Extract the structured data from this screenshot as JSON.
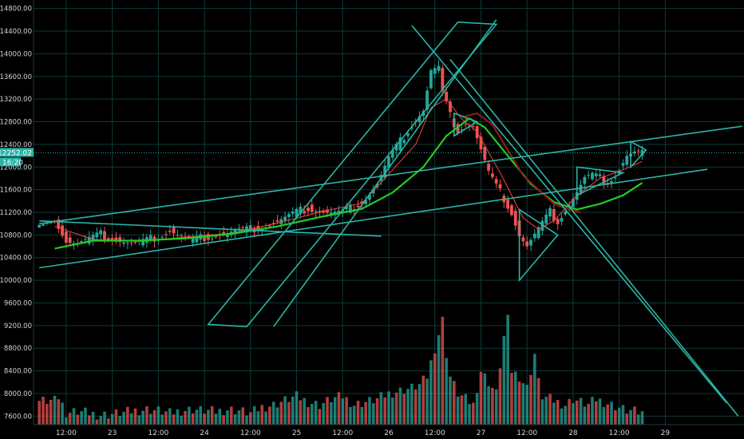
{
  "chart_data": {
    "type": "candlestick",
    "series_note": "",
    "y_axis": {
      "ticks": [
        7600,
        8000,
        8400,
        8800,
        9200,
        9600,
        10000,
        10400,
        10800,
        11200,
        11600,
        12000,
        12400,
        12800,
        13200,
        13600,
        14000,
        14400,
        14800
      ],
      "tick_labels": [
        "7600.00",
        "8000.00",
        "8400.00",
        "8800.00",
        "9200.00",
        "9600.00",
        "10000.00",
        "10400.00",
        "10800.00",
        "11200.00",
        "11600.00",
        "12000.00",
        "12400.00",
        "12800.00",
        "13200.00",
        "13600.00",
        "14000.00",
        "14400.00",
        "14800.00"
      ],
      "range": [
        7450,
        14950
      ]
    },
    "x_axis": {
      "start": "Jun 22 09:00",
      "tick_labels": [
        "12:00",
        "23",
        "12:00",
        "24",
        "12:00",
        "25",
        "12:00",
        "26",
        "12:00",
        "27",
        "12:00",
        "28",
        "12:00",
        "29"
      ],
      "tick_hours": [
        3,
        15,
        27,
        39,
        51,
        63,
        75,
        87,
        99,
        111,
        123,
        135,
        147,
        159
      ],
      "range_hours": [
        -5.5,
        179.5
      ]
    },
    "current_price": {
      "value": 12252.02,
      "label": "12252.02",
      "countdown": "16:20"
    },
    "grid": true,
    "colors": {
      "background": "#000000",
      "grid": "#0f3a3a",
      "up": "#26a69a",
      "down": "#ef5350",
      "ma_fast": "#ff4444",
      "ma_green": "#22cc22",
      "ma_dark": "#8b1a1a",
      "drawing": "#2ab5a6",
      "axis_text": "#d1d4dc"
    },
    "candle_anchors": [
      [
        0,
        11100
      ],
      [
        3,
        10700
      ],
      [
        6,
        10650
      ],
      [
        9,
        10730
      ],
      [
        12,
        10810
      ],
      [
        15,
        10740
      ],
      [
        18,
        10680
      ],
      [
        21,
        10640
      ],
      [
        24,
        10700
      ],
      [
        27,
        10780
      ],
      [
        30,
        10880
      ],
      [
        33,
        10760
      ],
      [
        36,
        10700
      ],
      [
        39,
        10760
      ],
      [
        42,
        10800
      ],
      [
        45,
        10830
      ],
      [
        48,
        10880
      ],
      [
        51,
        10900
      ],
      [
        54,
        10950
      ],
      [
        57,
        11000
      ],
      [
        60,
        11100
      ],
      [
        63,
        11200
      ],
      [
        66,
        11280
      ],
      [
        69,
        11220
      ],
      [
        72,
        11180
      ],
      [
        75,
        11200
      ],
      [
        78,
        11300
      ],
      [
        81,
        11450
      ],
      [
        84,
        11700
      ],
      [
        87,
        12150
      ],
      [
        90,
        12450
      ],
      [
        93,
        12750
      ],
      [
        96,
        13000
      ],
      [
        98,
        13700
      ],
      [
        100,
        13750
      ],
      [
        101,
        13300
      ],
      [
        103,
        12900
      ],
      [
        105,
        12650
      ],
      [
        107,
        12780
      ],
      [
        109,
        12720
      ],
      [
        111,
        12300
      ],
      [
        113,
        11900
      ],
      [
        115,
        11650
      ],
      [
        117,
        11450
      ],
      [
        119,
        11200
      ],
      [
        121,
        10800
      ],
      [
        123,
        10600
      ],
      [
        125,
        10800
      ],
      [
        127,
        11000
      ],
      [
        129,
        11200
      ],
      [
        131,
        11050
      ],
      [
        133,
        11250
      ],
      [
        136,
        11550
      ],
      [
        138,
        11800
      ],
      [
        140,
        11850
      ],
      [
        142,
        11800
      ],
      [
        144,
        11750
      ],
      [
        146,
        11850
      ],
      [
        149,
        12200
      ],
      [
        151,
        12250
      ],
      [
        153,
        12252
      ]
    ],
    "volume_anchors": [
      [
        0,
        8050
      ],
      [
        3,
        7650
      ],
      [
        6,
        7680
      ],
      [
        9,
        7650
      ],
      [
        12,
        7620
      ],
      [
        15,
        7640
      ],
      [
        18,
        7660
      ],
      [
        21,
        7700
      ],
      [
        24,
        7720
      ],
      [
        27,
        7700
      ],
      [
        30,
        7650
      ],
      [
        33,
        7700
      ],
      [
        36,
        7720
      ],
      [
        39,
        7700
      ],
      [
        42,
        7680
      ],
      [
        45,
        7720
      ],
      [
        48,
        7700
      ],
      [
        51,
        7650
      ],
      [
        54,
        7760
      ],
      [
        57,
        7800
      ],
      [
        60,
        7880
      ],
      [
        63,
        7950
      ],
      [
        66,
        7850
      ],
      [
        69,
        7800
      ],
      [
        72,
        7900
      ],
      [
        75,
        7950
      ],
      [
        78,
        7800
      ],
      [
        81,
        7850
      ],
      [
        84,
        7900
      ],
      [
        87,
        8000
      ],
      [
        90,
        8050
      ],
      [
        93,
        8100
      ],
      [
        95,
        8150
      ],
      [
        97,
        8300
      ],
      [
        99,
        8800
      ],
      [
        101,
        9300
      ],
      [
        102,
        8700
      ],
      [
        103,
        8300
      ],
      [
        105,
        8000
      ],
      [
        107,
        7900
      ],
      [
        109,
        7800
      ],
      [
        111,
        8400
      ],
      [
        113,
        8200
      ],
      [
        115,
        8000
      ],
      [
        117,
        9000
      ],
      [
        118,
        9300
      ],
      [
        119,
        8400
      ],
      [
        121,
        8300
      ],
      [
        123,
        8100
      ],
      [
        125,
        8700
      ],
      [
        126,
        8200
      ],
      [
        127,
        7950
      ],
      [
        129,
        7900
      ],
      [
        131,
        7850
      ],
      [
        133,
        7800
      ],
      [
        135,
        7900
      ],
      [
        137,
        7850
      ],
      [
        139,
        7800
      ],
      [
        141,
        7900
      ],
      [
        143,
        7850
      ],
      [
        145,
        7800
      ],
      [
        147,
        7750
      ],
      [
        149,
        7700
      ],
      [
        151,
        7680
      ],
      [
        153,
        7650
      ]
    ],
    "moving_averages": [
      {
        "name": "",
        "color_key": "ma_fast",
        "points": [
          [
            0,
            10950
          ],
          [
            10,
            10720
          ],
          [
            22,
            10690
          ],
          [
            34,
            10760
          ],
          [
            46,
            10830
          ],
          [
            58,
            11010
          ],
          [
            70,
            11220
          ],
          [
            80,
            11360
          ],
          [
            88,
            11950
          ],
          [
            94,
            12400
          ],
          [
            98,
            13050
          ],
          [
            102,
            13200
          ],
          [
            106,
            12850
          ],
          [
            110,
            12620
          ],
          [
            116,
            11900
          ],
          [
            122,
            11100
          ],
          [
            126,
            10900
          ],
          [
            130,
            11050
          ],
          [
            136,
            11500
          ],
          [
            142,
            11800
          ],
          [
            148,
            11950
          ],
          [
            153,
            12100
          ]
        ]
      },
      {
        "name": "",
        "color_key": "ma_green",
        "points": [
          [
            0,
            10560
          ],
          [
            10,
            10700
          ],
          [
            22,
            10700
          ],
          [
            34,
            10740
          ],
          [
            46,
            10820
          ],
          [
            58,
            10950
          ],
          [
            70,
            11130
          ],
          [
            80,
            11260
          ],
          [
            88,
            11550
          ],
          [
            96,
            12000
          ],
          [
            102,
            12550
          ],
          [
            108,
            12860
          ],
          [
            112,
            12700
          ],
          [
            118,
            12200
          ],
          [
            124,
            11700
          ],
          [
            130,
            11380
          ],
          [
            136,
            11250
          ],
          [
            142,
            11350
          ],
          [
            148,
            11500
          ],
          [
            153,
            11720
          ]
        ]
      },
      {
        "name": "",
        "color_key": "ma_dark",
        "points": [
          [
            106,
            12880
          ],
          [
            110,
            12950
          ],
          [
            114,
            12750
          ],
          [
            118,
            12300
          ],
          [
            122,
            11850
          ],
          [
            126,
            11600
          ],
          [
            130,
            11350
          ],
          [
            134,
            11250
          ],
          [
            137,
            11200
          ]
        ]
      }
    ],
    "drawings": [
      {
        "type": "channel",
        "points": [
          [
            -4,
            11050
          ],
          [
            85,
            10780
          ],
          [
            -4,
            10220
          ],
          [
            170,
            11960
          ]
        ]
      },
      {
        "type": "trendline",
        "points": [
          [
            -4,
            11000
          ],
          [
            179,
            12720
          ]
        ]
      },
      {
        "type": "rectangle",
        "points": [
          [
            40,
            9220
          ],
          [
            50,
            9180
          ],
          [
            115,
            14520
          ],
          [
            105,
            14560
          ]
        ]
      },
      {
        "type": "trendline",
        "points": [
          [
            57,
            9180
          ],
          [
            115,
            14600
          ]
        ]
      },
      {
        "type": "trendline",
        "points": [
          [
            93,
            14500
          ],
          [
            175,
            7830
          ]
        ]
      },
      {
        "type": "trendline",
        "points": [
          [
            103,
            13900
          ],
          [
            178,
            7600
          ]
        ]
      },
      {
        "type": "wedge",
        "points": [
          [
            121,
            10000
          ],
          [
            121,
            11250
          ],
          [
            131,
            10800
          ]
        ]
      },
      {
        "type": "triangle",
        "points": [
          [
            104,
            12550
          ],
          [
            104,
            12950
          ],
          [
            110,
            12800
          ]
        ]
      },
      {
        "type": "triangle",
        "points": [
          [
            136,
            11500
          ],
          [
            136,
            12000
          ],
          [
            148,
            11900
          ]
        ]
      },
      {
        "type": "triangle",
        "points": [
          [
            150,
            12000
          ],
          [
            150,
            12450
          ],
          [
            154,
            12300
          ]
        ]
      }
    ]
  }
}
